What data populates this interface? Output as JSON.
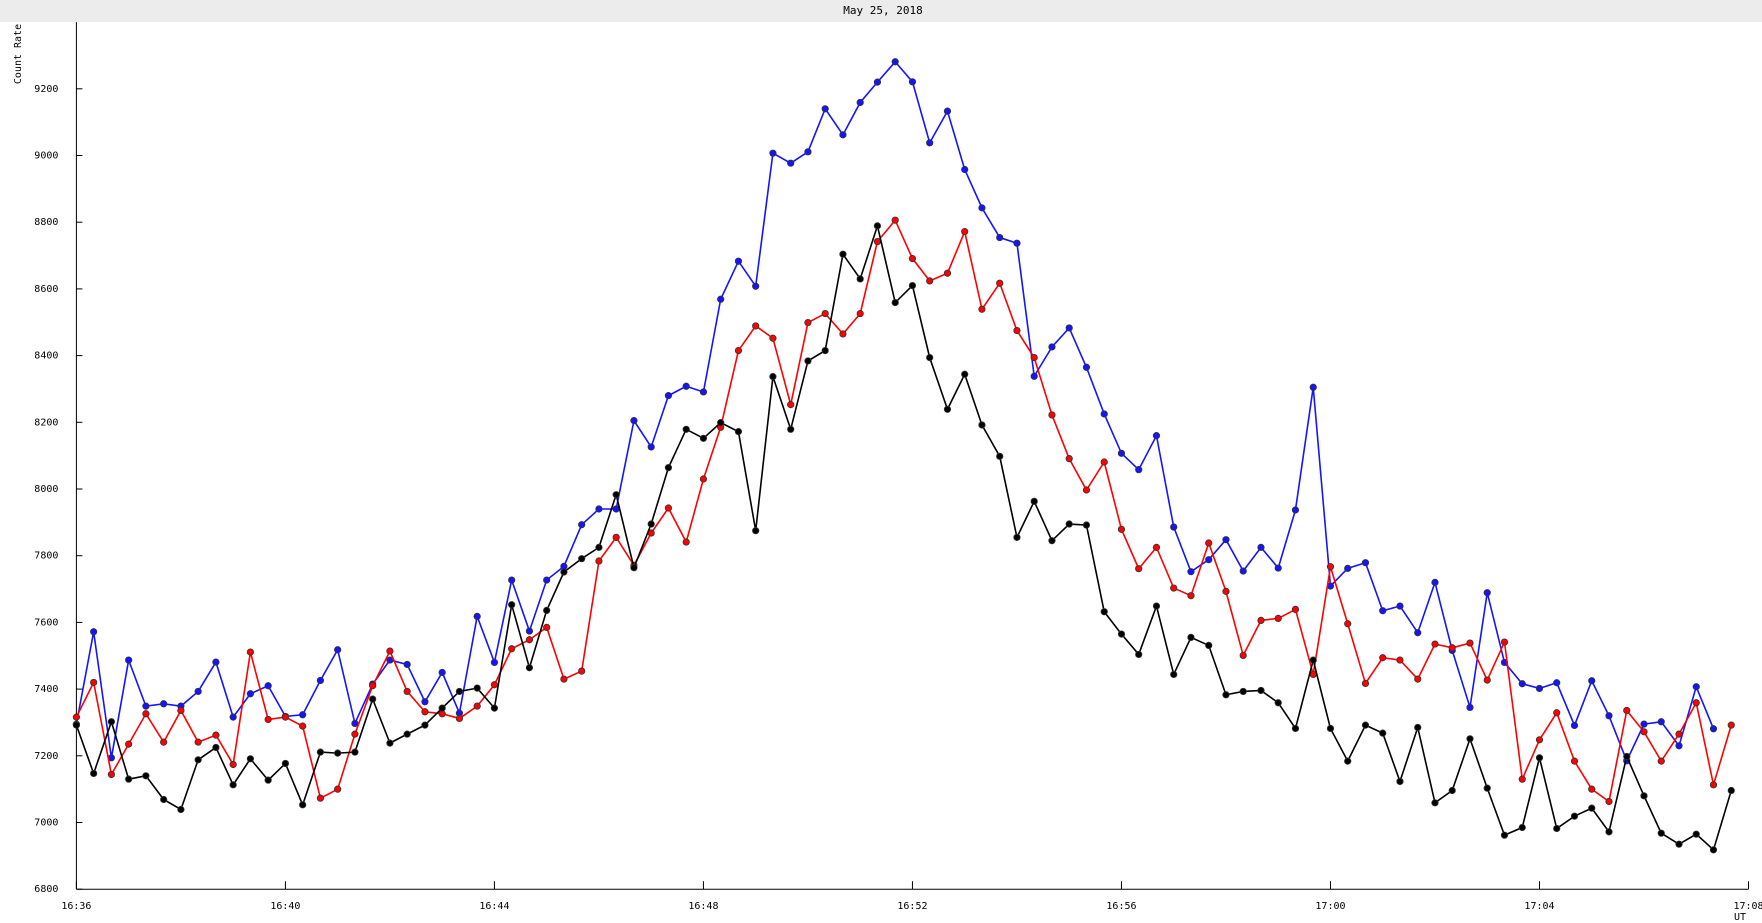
{
  "chart_data": {
    "type": "line",
    "title": "May 25, 2018",
    "y_label": "Count Rate",
    "x_label": "UT",
    "x": [
      996,
      996.33,
      996.67,
      997,
      997.33,
      997.67,
      998,
      998.33,
      998.67,
      999,
      999.33,
      999.67,
      1000,
      1000.33,
      1000.67,
      1001,
      1001.33,
      1001.67,
      1002,
      1002.33,
      1002.67,
      1003,
      1003.33,
      1003.67,
      1004,
      1004.33,
      1004.67,
      1005,
      1005.33,
      1005.67,
      1006,
      1006.33,
      1006.67,
      1007,
      1007.33,
      1007.67,
      1008,
      1008.33,
      1008.67,
      1009,
      1009.33,
      1009.67,
      1010,
      1010.33,
      1010.67,
      1011,
      1011.33,
      1011.67,
      1012,
      1012.33,
      1012.67,
      1013,
      1013.33,
      1013.67,
      1014,
      1014.33,
      1014.67,
      1015,
      1015.33,
      1015.67,
      1016,
      1016.33,
      1016.67,
      1017,
      1017.33,
      1017.67,
      1018,
      1018.33,
      1018.67,
      1019,
      1019.33,
      1019.67,
      1020,
      1020.33,
      1020.67,
      1021,
      1021.33,
      1021.67,
      1022,
      1022.33,
      1022.67,
      1023,
      1023.33,
      1023.67,
      1024,
      1024.33,
      1024.67,
      1025,
      1025.33,
      1025.67,
      1026,
      1026.33,
      1026.67,
      1027,
      1027.33,
      1027.67
    ],
    "series": [
      {
        "color": "#1414ff",
        "values": [
          7295,
          7572,
          7194,
          7487,
          7349,
          7356,
          7349,
          7393,
          7481,
          7316,
          7386,
          7410,
          7318,
          7323,
          7426,
          7518,
          7297,
          7415,
          7487,
          7474,
          7362,
          7450,
          7328,
          7618,
          7480,
          7727,
          7574,
          7727,
          7768,
          7893,
          7940,
          7940,
          8205,
          8126,
          8280,
          8308,
          8291,
          8569,
          8683,
          8608,
          9007,
          8977,
          9011,
          9140,
          9062,
          9159,
          9220,
          9281,
          9221,
          9038,
          9133,
          8958,
          8843,
          8754,
          8737,
          8338,
          8426,
          8483,
          8365,
          8225,
          8107,
          8058,
          8160,
          7886,
          7752,
          7788,
          7848,
          7754,
          7825,
          7763,
          7937,
          8305,
          7709,
          7762,
          7779,
          7635,
          7649,
          7569,
          7720,
          7516,
          7345,
          7689,
          7480,
          7416,
          7402,
          7419,
          7291,
          7425,
          7320,
          7185,
          7295,
          7302,
          7230,
          7407,
          7281,
          null
        ]
      },
      {
        "color": "#ff0000",
        "values": [
          7316,
          7420,
          7144,
          7235,
          7326,
          7241,
          7336,
          7241,
          7262,
          7174,
          7511,
          7309,
          7316,
          7289,
          7073,
          7100,
          7265,
          7410,
          7514,
          7393,
          7332,
          7326,
          7312,
          7349,
          7413,
          7521,
          7548,
          7585,
          7430,
          7454,
          7784,
          7855,
          7771,
          7868,
          7943,
          7841,
          8030,
          8185,
          8415,
          8489,
          8452,
          8253,
          8499,
          8526,
          8465,
          8526,
          8742,
          8806,
          8691,
          8624,
          8647,
          8772,
          8539,
          8617,
          8475,
          8394,
          8222,
          8091,
          7997,
          8081,
          7879,
          7761,
          7825,
          7703,
          7680,
          7838,
          7693,
          7501,
          7606,
          7612,
          7639,
          7444,
          7767,
          7596,
          7417,
          7494,
          7487,
          7430,
          7535,
          7524,
          7538,
          7427,
          7541,
          7130,
          7248,
          7329,
          7184,
          7100,
          7063,
          7336,
          7272,
          7184,
          7265,
          7359,
          7113,
          7292
        ]
      },
      {
        "color": "#000000",
        "values": [
          7292,
          7147,
          7302,
          7130,
          7140,
          7069,
          7039,
          7188,
          7225,
          7113,
          7191,
          7127,
          7177,
          7053,
          7211,
          7208,
          7211,
          7370,
          7238,
          7265,
          7292,
          7343,
          7393,
          7403,
          7343,
          7653,
          7464,
          7636,
          7751,
          7791,
          7825,
          7983,
          7764,
          7895,
          8064,
          8179,
          8152,
          8199,
          8172,
          7875,
          8337,
          8179,
          8384,
          8415,
          8704,
          8630,
          8789,
          8559,
          8610,
          8394,
          8239,
          8344,
          8192,
          8098,
          7855,
          7963,
          7845,
          7895,
          7892,
          7632,
          7565,
          7504,
          7649,
          7444,
          7555,
          7531,
          7383,
          7393,
          7396,
          7359,
          7282,
          7487,
          7282,
          7184,
          7292,
          7268,
          7123,
          7285,
          7059,
          7096,
          7251,
          7103,
          6962,
          6985,
          7194,
          6982,
          7019,
          7043,
          6972,
          7198,
          7080,
          6968,
          6935,
          6965,
          6918,
          7096
        ]
      }
    ],
    "xlim": [
      996,
      1028
    ],
    "xticks": [
      {
        "value": 996,
        "label": "16:36"
      },
      {
        "value": 1000,
        "label": "16:40"
      },
      {
        "value": 1004,
        "label": "16:44"
      },
      {
        "value": 1008,
        "label": "16:48"
      },
      {
        "value": 1012,
        "label": "16:52"
      },
      {
        "value": 1016,
        "label": "16:56"
      },
      {
        "value": 1020,
        "label": "17:00"
      },
      {
        "value": 1024,
        "label": "17:04"
      },
      {
        "value": 1028,
        "label": "17:08"
      }
    ],
    "ylim": [
      6800,
      9400
    ],
    "yticks": [
      6800,
      7000,
      7200,
      7400,
      7600,
      7800,
      8000,
      8200,
      8400,
      8600,
      8800,
      9000,
      9200
    ],
    "grid": false
  }
}
